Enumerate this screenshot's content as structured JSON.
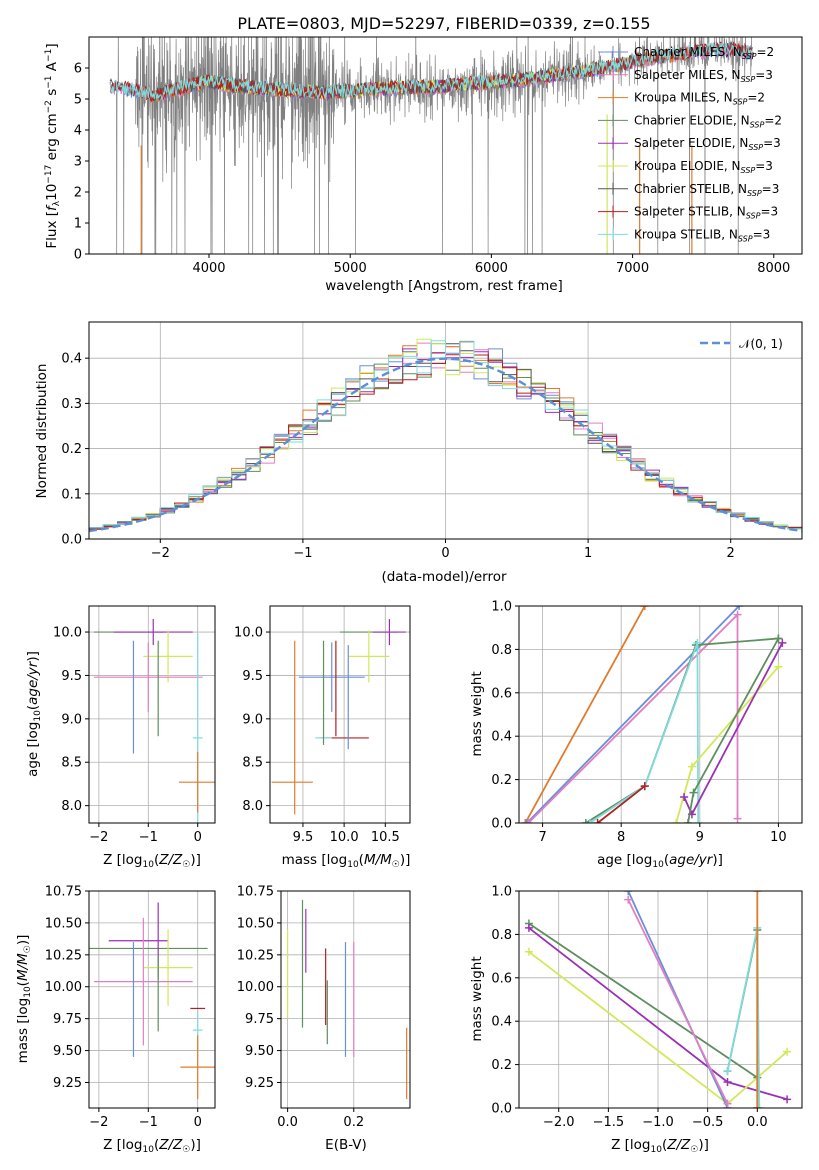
{
  "figure": {
    "title": "PLATE=0803, MJD=52297, FIBERID=0339, z=0.155"
  },
  "colors": {
    "chabrier_miles": "#6a8fd6",
    "salpeter_miles": "#e17fc4",
    "kroupa_miles": "#e07b2c",
    "chabrier_elodie": "#5f8e5f",
    "salpeter_elodie": "#9a31b5",
    "kroupa_elodie": "#d2e85a",
    "chabrier_stelib": "#555555",
    "salpeter_stelib": "#b52020",
    "kroupa_stelib": "#7fdcdc",
    "data": "#808080",
    "normal": "#5b8fd6"
  },
  "chart_data": [
    {
      "id": "spectrum",
      "type": "line",
      "title": "PLATE=0803, MJD=52297, FIBERID=0339, z=0.155",
      "xlabel": "wavelength [Angstrom, rest frame]",
      "ylabel": "Flux [f_λ 10^-17 erg cm^-2 s^-1 A^-1]",
      "xlim": [
        3150,
        8200
      ],
      "ylim": [
        0,
        7
      ],
      "xticks": [
        4000,
        5000,
        6000,
        7000,
        8000
      ],
      "yticks": [
        0,
        1,
        2,
        3,
        4,
        5,
        6
      ],
      "legend_position": "top-right",
      "series": [
        {
          "name": "Chabrier MILES, N_SSP=2",
          "color": "#6a8fd6"
        },
        {
          "name": "Salpeter MILES, N_SSP=3",
          "color": "#e17fc4"
        },
        {
          "name": "Kroupa MILES, N_SSP=2",
          "color": "#e07b2c"
        },
        {
          "name": "Chabrier ELODIE, N_SSP=2",
          "color": "#5f8e5f"
        },
        {
          "name": "Salpeter ELODIE, N_SSP=3",
          "color": "#9a31b5"
        },
        {
          "name": "Kroupa ELODIE, N_SSP=3",
          "color": "#d2e85a"
        },
        {
          "name": "Chabrier STELIB, N_SSP=3",
          "color": "#555555"
        },
        {
          "name": "Salpeter STELIB, N_SSP=3",
          "color": "#b52020"
        },
        {
          "name": "Kroupa STELIB, N_SSP=3",
          "color": "#7fdcdc"
        }
      ],
      "continuum": {
        "x": [
          3300,
          3450,
          3600,
          3800,
          4000,
          4200,
          4500,
          4800,
          5000,
          5300,
          5600,
          5900,
          6200,
          6500,
          6800,
          7100,
          7400,
          7700,
          7850
        ],
        "y": [
          5.4,
          5.3,
          5.1,
          5.35,
          5.55,
          5.4,
          5.3,
          5.2,
          5.25,
          5.35,
          5.4,
          5.5,
          5.6,
          5.8,
          6.0,
          6.3,
          6.5,
          6.6,
          6.5
        ]
      }
    },
    {
      "id": "residuals",
      "type": "histogram",
      "xlabel": "(data-model)/error",
      "ylabel": "Normed distribution",
      "xlim": [
        -2.5,
        2.5
      ],
      "ylim": [
        0,
        0.48
      ],
      "xticks": [
        -2,
        -1,
        0,
        1,
        2
      ],
      "yticks": [
        0.0,
        0.1,
        0.2,
        0.3,
        0.4
      ],
      "legend": "N(0,1)",
      "legend_position": "top-right",
      "bin_width": 0.1,
      "bin_start": -2.5
    },
    {
      "id": "age_vs_Z",
      "type": "errorbar",
      "xlabel": "Z [log10(Z/Z☉)]",
      "ylabel": "age [log10(age/yr)]",
      "xlim": [
        -2.2,
        0.35
      ],
      "ylim": [
        7.8,
        10.3
      ],
      "xticks": [
        -2,
        -1,
        0
      ],
      "yticks": [
        8.0,
        8.5,
        9.0,
        9.5,
        10.0
      ],
      "points": [
        {
          "x": -1.4,
          "xerr": 0.7,
          "y": 10.0,
          "yerr": 0,
          "color": "#5f8e5f"
        },
        {
          "x": -0.9,
          "xerr": 0.8,
          "y": 10.0,
          "yerr": 0.15,
          "color": "#9a31b5"
        },
        {
          "x": -0.6,
          "xerr": 0.5,
          "y": 9.72,
          "yerr": 0.3,
          "color": "#d2e85a"
        },
        {
          "x": -1.0,
          "xerr": 1.1,
          "y": 9.48,
          "yerr": 0.4,
          "color": "#e17fc4"
        },
        {
          "x": -1.3,
          "xerr": 0,
          "y": 9.25,
          "yerr": 0.65,
          "color": "#6a8fd6"
        },
        {
          "x": -0.8,
          "xerr": 0,
          "y": 9.35,
          "yerr": 0.55,
          "color": "#5f8e5f"
        },
        {
          "x": 0.0,
          "xerr": 0.1,
          "y": 8.78,
          "yerr": 1.2,
          "color": "#7fdcdc"
        },
        {
          "x": 0.0,
          "xerr": 0.38,
          "y": 8.27,
          "yerr": 0.35,
          "color": "#e07b2c"
        }
      ]
    },
    {
      "id": "age_vs_mass",
      "type": "errorbar",
      "xlabel": "mass [log10(M/M☉)]",
      "ylabel": "",
      "xlim": [
        9.1,
        10.8
      ],
      "ylim": [
        7.8,
        10.3
      ],
      "xticks": [
        9.5,
        10.0,
        10.5
      ],
      "yticks": [
        8.0,
        8.5,
        9.0,
        9.5,
        10.0
      ],
      "points": [
        {
          "x": 10.3,
          "xerr": 0.35,
          "y": 10.0,
          "yerr": 0,
          "color": "#5f8e5f"
        },
        {
          "x": 10.55,
          "xerr": 0.2,
          "y": 10.0,
          "yerr": 0.15,
          "color": "#9a31b5"
        },
        {
          "x": 10.3,
          "xerr": 0.25,
          "y": 9.72,
          "yerr": 0.3,
          "color": "#d2e85a"
        },
        {
          "x": 9.85,
          "xerr": 0.4,
          "y": 9.48,
          "yerr": 0.4,
          "color": "#6a8fd6"
        },
        {
          "x": 10.0,
          "xerr": 0.3,
          "y": 8.78,
          "yerr": 0,
          "color": "#b52020"
        },
        {
          "x": 9.75,
          "xerr": 0.1,
          "y": 8.78,
          "yerr": 0,
          "color": "#7fdcdc"
        },
        {
          "x": 9.75,
          "xerr": 0,
          "y": 9.3,
          "yerr": 0.6,
          "color": "#5f8e5f"
        },
        {
          "x": 9.9,
          "xerr": 0,
          "y": 9.35,
          "yerr": 0.55,
          "color": "#b52020"
        },
        {
          "x": 10.05,
          "xerr": 0,
          "y": 9.25,
          "yerr": 0.6,
          "color": "#6a8fd6"
        },
        {
          "x": 9.4,
          "xerr": 0,
          "y": 8.9,
          "yerr": 1.0,
          "color": "#e07b2c"
        },
        {
          "x": 9.37,
          "xerr": 0.25,
          "y": 8.27,
          "yerr": 0,
          "color": "#e07b2c"
        }
      ]
    },
    {
      "id": "weight_vs_age",
      "type": "line",
      "xlabel": "age [log10(age/yr)]",
      "ylabel": "mass weight",
      "xlim": [
        6.7,
        10.3
      ],
      "ylim": [
        0,
        1
      ],
      "xticks": [
        7,
        8,
        9,
        10
      ],
      "yticks": [
        0.0,
        0.2,
        0.4,
        0.6,
        0.8,
        1.0
      ],
      "series": [
        {
          "color": "#e07b2c",
          "x": [
            6.78,
            8.3
          ],
          "y": [
            0.0,
            1.0
          ]
        },
        {
          "color": "#6a8fd6",
          "x": [
            6.8,
            9.5
          ],
          "y": [
            0.0,
            1.0
          ]
        },
        {
          "color": "#e17fc4",
          "x": [
            6.82,
            9.48,
            9.48
          ],
          "y": [
            0.0,
            0.96,
            0.02
          ]
        },
        {
          "color": "#5f8e5f",
          "x": [
            7.55,
            8.3,
            8.95,
            10.0
          ],
          "y": [
            0.0,
            0.17,
            0.82,
            0.85
          ]
        },
        {
          "color": "#7fdcdc",
          "x": [
            7.6,
            8.3,
            8.97,
            8.98
          ],
          "y": [
            0.0,
            0.17,
            0.83,
            0.0
          ]
        },
        {
          "color": "#b52020",
          "x": [
            7.7,
            8.3
          ],
          "y": [
            0.0,
            0.17
          ]
        },
        {
          "color": "#d2e85a",
          "x": [
            8.7,
            8.9,
            10.0
          ],
          "y": [
            0.0,
            0.26,
            0.72
          ]
        },
        {
          "color": "#9a31b5",
          "x": [
            8.8,
            8.9,
            10.05
          ],
          "y": [
            0.12,
            0.04,
            0.83
          ]
        },
        {
          "color": "#5f8e5f",
          "x": [
            8.85,
            8.92,
            10.0
          ],
          "y": [
            0.0,
            0.14,
            0.85
          ]
        }
      ]
    },
    {
      "id": "mass_vs_Z",
      "type": "errorbar",
      "xlabel": "Z [log10(Z/Z☉)]",
      "ylabel": "mass [log10(M/M☉)]",
      "xlim": [
        -2.2,
        0.35
      ],
      "ylim": [
        9.05,
        10.75
      ],
      "xticks": [
        -2,
        -1,
        0
      ],
      "yticks": [
        9.25,
        9.5,
        9.75,
        10.0,
        10.25,
        10.5,
        10.75
      ],
      "points": [
        {
          "x": -1.0,
          "xerr": 1.2,
          "y": 10.3,
          "yerr": 0,
          "color": "#5f8e5f"
        },
        {
          "x": -1.2,
          "xerr": 0.6,
          "y": 10.36,
          "yerr": 0,
          "color": "#9a31b5"
        },
        {
          "x": -0.8,
          "xerr": 0,
          "y": 10.36,
          "yerr": 0.3,
          "color": "#9a31b5"
        },
        {
          "x": -0.6,
          "xerr": 0.5,
          "y": 10.15,
          "yerr": 0.3,
          "color": "#d2e85a"
        },
        {
          "x": -1.1,
          "xerr": 1.0,
          "y": 10.04,
          "yerr": 0.5,
          "color": "#e17fc4"
        },
        {
          "x": -1.3,
          "xerr": 0,
          "y": 9.9,
          "yerr": 0.45,
          "color": "#6a8fd6"
        },
        {
          "x": -0.8,
          "xerr": 0,
          "y": 9.95,
          "yerr": 0.3,
          "color": "#5f8e5f"
        },
        {
          "x": 0.0,
          "xerr": 0.15,
          "y": 9.83,
          "yerr": 0,
          "color": "#b52020"
        },
        {
          "x": 0.0,
          "xerr": 0.1,
          "y": 9.66,
          "yerr": 0.15,
          "color": "#7fdcdc"
        },
        {
          "x": 0.0,
          "xerr": 0.35,
          "y": 9.37,
          "yerr": 0.25,
          "color": "#e07b2c"
        }
      ]
    },
    {
      "id": "mass_vs_EBV",
      "type": "errorbar",
      "xlabel": "E(B-V)",
      "ylabel": "",
      "xlim": [
        -0.02,
        0.37
      ],
      "ylim": [
        9.05,
        10.75
      ],
      "xticks": [
        0.0,
        0.2
      ],
      "points": [
        {
          "x": 0.0,
          "xerr": 0,
          "y": 10.1,
          "yerr": 0.35,
          "color": "#d2e85a"
        },
        {
          "x": 0.045,
          "xerr": 0,
          "y": 10.18,
          "yerr": 0.5,
          "color": "#5f8e5f"
        },
        {
          "x": 0.055,
          "xerr": 0,
          "y": 10.36,
          "yerr": 0.25,
          "color": "#9a31b5"
        },
        {
          "x": 0.115,
          "xerr": 0,
          "y": 10.0,
          "yerr": 0.3,
          "color": "#b52020"
        },
        {
          "x": 0.12,
          "xerr": 0,
          "y": 9.8,
          "yerr": 0.25,
          "color": "#5f8e5f"
        },
        {
          "x": 0.175,
          "xerr": 0,
          "y": 9.9,
          "yerr": 0.45,
          "color": "#6a8fd6"
        },
        {
          "x": 0.2,
          "xerr": 0,
          "y": 9.9,
          "yerr": 0.45,
          "color": "#e17fc4"
        },
        {
          "x": 0.36,
          "xerr": 0,
          "y": 9.4,
          "yerr": 0.28,
          "color": "#e07b2c"
        }
      ]
    },
    {
      "id": "weight_vs_Z",
      "type": "line",
      "xlabel": "Z [log10(Z/Z☉)]",
      "ylabel": "mass weight",
      "xlim": [
        -2.4,
        0.45
      ],
      "ylim": [
        0,
        1
      ],
      "xticks": [
        -2.0,
        -1.5,
        -1.0,
        -0.5,
        0.0
      ],
      "yticks": [
        0.0,
        0.2,
        0.4,
        0.6,
        0.8,
        1.0
      ],
      "series": [
        {
          "color": "#5f8e5f",
          "x": [
            -2.3,
            0.0
          ],
          "y": [
            0.85,
            0.14
          ]
        },
        {
          "color": "#9a31b5",
          "x": [
            -2.3,
            -0.3,
            0.3
          ],
          "y": [
            0.83,
            0.12,
            0.04
          ]
        },
        {
          "color": "#d2e85a",
          "x": [
            -2.3,
            -0.3,
            0.3
          ],
          "y": [
            0.72,
            0.02,
            0.26
          ]
        },
        {
          "color": "#6a8fd6",
          "x": [
            -1.3,
            -0.3
          ],
          "y": [
            1.0,
            0.0
          ]
        },
        {
          "color": "#e17fc4",
          "x": [
            -1.3,
            -0.3
          ],
          "y": [
            0.96,
            0.02
          ]
        },
        {
          "color": "#5f8e5f",
          "x": [
            -0.3,
            0.0,
            0.0
          ],
          "y": [
            0.17,
            0.82,
            0.0
          ]
        },
        {
          "color": "#7fdcdc",
          "x": [
            -0.3,
            0.0,
            0.02
          ],
          "y": [
            0.17,
            0.83,
            0.0
          ]
        },
        {
          "color": "#e07b2c",
          "x": [
            0.0,
            0.0
          ],
          "y": [
            0.0,
            1.0
          ]
        }
      ]
    }
  ]
}
